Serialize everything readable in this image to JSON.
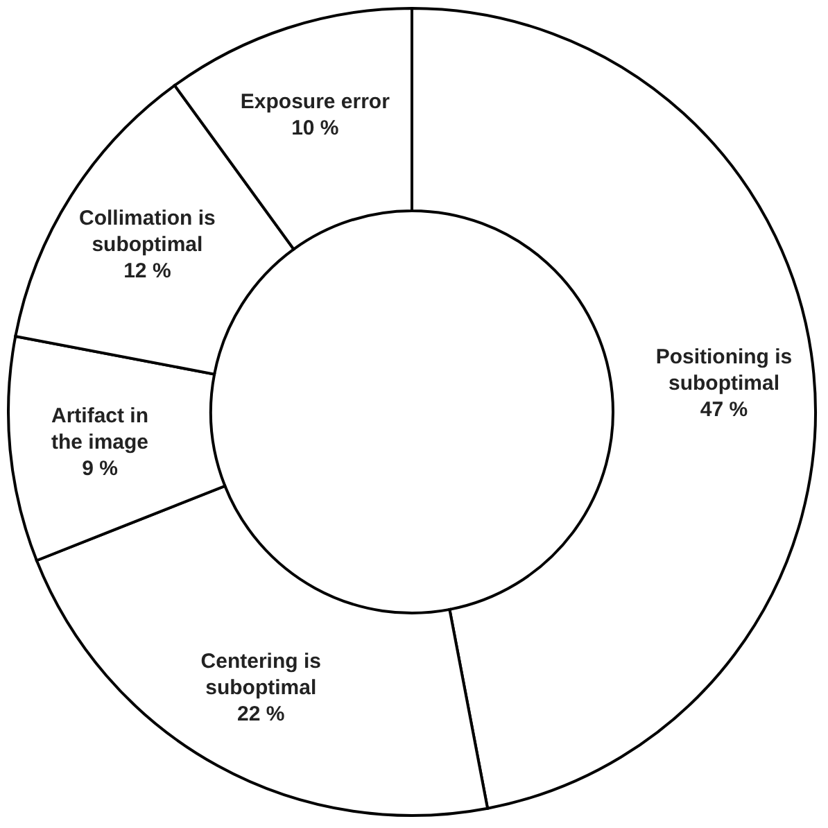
{
  "chart_data": {
    "type": "donut",
    "categories": [
      "Positioning is suboptimal",
      "Centering is suboptimal",
      "Artifact in the image",
      "Collimation is suboptimal",
      "Exposure error"
    ],
    "values": [
      47,
      22,
      9,
      12,
      10
    ],
    "value_labels": [
      "47 %",
      "22 %",
      "9 %",
      "12 %",
      "10 %"
    ],
    "colors": [
      "#ffffff",
      "#ffffff",
      "#ffffff",
      "#ffffff",
      "#ffffff"
    ]
  }
}
